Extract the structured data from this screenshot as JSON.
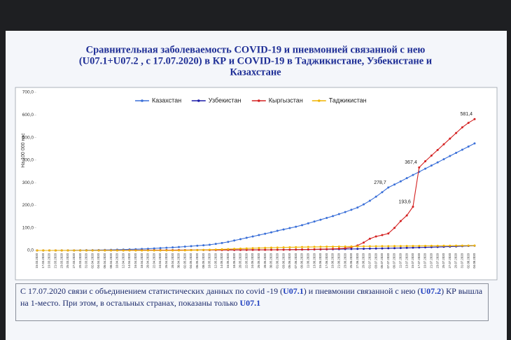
{
  "chart_data": {
    "type": "line",
    "title_lines": [
      "Сравнительная заболеваемость COVID-19 и пневмонией связанной с нею",
      "(U07.1+U07.2 , с 17.07.2020) в КР и COVID-19 в Таджикистане, Узбекистане и",
      "Казахстане"
    ],
    "y_label": "На 100 000 нас",
    "categories": [
      "15.03.2020",
      "17.03.2020",
      "19.03.2020",
      "21.03.2020",
      "23.03.2020",
      "25.03.2020",
      "27.03.2020",
      "29.03.2020",
      "31.03.2020",
      "02.04.2020",
      "04.04.2020",
      "06.04.2020",
      "08.04.2020",
      "10.04.2020",
      "12.04.2020",
      "14.04.2020",
      "16.04.2020",
      "18.04.2020",
      "20.04.2020",
      "22.04.2020",
      "24.04.2020",
      "26.04.2020",
      "28.04.2020",
      "30.04.2020",
      "02.05.2020",
      "04.05.2020",
      "06.05.2020",
      "08.05.2020",
      "10.05.2020",
      "12.05.2020",
      "14.05.2020",
      "16.05.2020",
      "18.05.2020",
      "20.05.2020",
      "22.05.2020",
      "24.05.2020",
      "26.05.2020",
      "28.05.2020",
      "30.05.2020",
      "01.06.2020",
      "03.06.2020",
      "05.06.2020",
      "07.06.2020",
      "09.06.2020",
      "11.06.2020",
      "13.06.2020",
      "15.06.2020",
      "17.06.2020",
      "19.06.2020",
      "21.06.2020",
      "23.06.2020",
      "25.06.2020",
      "27.06.2020",
      "29.06.2020",
      "01.07.2020",
      "03.07.2020",
      "05.07.2020",
      "07.07.2020",
      "09.07.2020",
      "11.07.2020",
      "13.07.2020",
      "15.07.2020",
      "17.07.2020",
      "19.07.2020",
      "21.07.2020",
      "23.07.2020",
      "25.07.2020",
      "27.07.2020",
      "29.07.2020",
      "31.07.2020",
      "02.08.2020",
      "04.08.2020"
    ],
    "series": [
      {
        "name": "Казахстан",
        "color": "#3a6fd8",
        "values": [
          0,
          0,
          0,
          0.1,
          0.2,
          0.3,
          0.5,
          0.7,
          1,
          1.3,
          1.7,
          2.2,
          2.7,
          3.3,
          4,
          4.7,
          5.5,
          6.5,
          7.5,
          9,
          10.5,
          12,
          13.5,
          15,
          17,
          19,
          21,
          23,
          25,
          29,
          33,
          38,
          44,
          50,
          56,
          62,
          68,
          74,
          80,
          87,
          93,
          99,
          105,
          112,
          120,
          128,
          136,
          144,
          152,
          161,
          170,
          180,
          190,
          204,
          220,
          238,
          258,
          278.7,
          292,
          306,
          320,
          334,
          348,
          362,
          376,
          390,
          404,
          418,
          432,
          446,
          460,
          474
        ],
        "value_labels": {
          "57": "278,7"
        }
      },
      {
        "name": "Узбекистан",
        "color": "#1c1ca8",
        "values": [
          0,
          0,
          0,
          0,
          0,
          0,
          0.1,
          0.1,
          0.2,
          0.2,
          0.3,
          0.4,
          0.5,
          0.6,
          0.7,
          0.8,
          0.9,
          1,
          1.1,
          1.2,
          1.3,
          1.4,
          1.5,
          1.6,
          1.7,
          1.8,
          1.9,
          2,
          2.1,
          2.2,
          2.3,
          2.4,
          2.5,
          2.6,
          2.7,
          2.8,
          2.9,
          3,
          3.1,
          3.2,
          3.4,
          3.6,
          3.8,
          4,
          4.2,
          4.5,
          4.8,
          5.1,
          5.4,
          5.8,
          6.2,
          6.6,
          7,
          7.5,
          8,
          8.5,
          9,
          9.6,
          10.2,
          10.8,
          11.5,
          12.2,
          13,
          13.8,
          14.6,
          15.4,
          16.2,
          17,
          18,
          19,
          20,
          21
        ]
      },
      {
        "name": "Кыргызстан",
        "color": "#d42020",
        "values": [
          0,
          0,
          0,
          0,
          0,
          0,
          0,
          0,
          0,
          0,
          0.1,
          0.2,
          0.3,
          0.4,
          0.5,
          0.6,
          0.7,
          0.8,
          0.9,
          1,
          1.1,
          1.2,
          1.3,
          1.4,
          1.5,
          1.6,
          1.7,
          1.8,
          1.9,
          2,
          2.1,
          2.2,
          2.3,
          2.4,
          2.5,
          2.6,
          2.7,
          2.8,
          2.9,
          3,
          3.2,
          3.5,
          3.8,
          4.2,
          4.6,
          5,
          5.5,
          6,
          7,
          8,
          10,
          14,
          22,
          35,
          52,
          62,
          68,
          75,
          100,
          130,
          155,
          193.6,
          367.4,
          395,
          420,
          445,
          470,
          495,
          520,
          545,
          565,
          581.4
        ],
        "value_labels": {
          "61": "193,6",
          "62": "367,4",
          "71": "581,4"
        }
      },
      {
        "name": "Таджикистан",
        "color": "#f0b400",
        "values": [
          0,
          0,
          0,
          0,
          0,
          0,
          0,
          0,
          0,
          0,
          0,
          0,
          0,
          0,
          0,
          0,
          0,
          0,
          0,
          0,
          0,
          0,
          0,
          0,
          0.5,
          1,
          1.5,
          2.2,
          3,
          4,
          5,
          6,
          7,
          8,
          9,
          10,
          10.8,
          11.5,
          12.2,
          12.8,
          13.4,
          14,
          14.5,
          15,
          15.4,
          15.8,
          16.2,
          16.5,
          16.8,
          17.1,
          17.4,
          17.7,
          18,
          18.2,
          18.4,
          18.6,
          18.8,
          19,
          19.2,
          19.4,
          19.6,
          19.8,
          20,
          20.2,
          20.4,
          20.6,
          20.8,
          21,
          21.2,
          21.4,
          21.6,
          21.8
        ]
      }
    ],
    "ylim": [
      0,
      700
    ],
    "yticks": [
      {
        "value": 0,
        "label": "0,0"
      },
      {
        "value": 100,
        "label": "100,0"
      },
      {
        "value": 200,
        "label": "200,0"
      },
      {
        "value": 300,
        "label": "300,0"
      },
      {
        "value": 400,
        "label": "400,0"
      },
      {
        "value": 500,
        "label": "500,0"
      },
      {
        "value": 600,
        "label": "600,0"
      },
      {
        "value": 700,
        "label": "700,0"
      }
    ],
    "legend": "top",
    "note": [
      {
        "text": "С 17.07.2020 связи с объединением статистических данных по covid -19 (",
        "bold": false
      },
      {
        "text": "U07.1",
        "bold": true
      },
      {
        "text": ") и пневмонии связанной с нею (",
        "bold": false
      },
      {
        "text": "U07.2",
        "bold": true
      },
      {
        "text": ") КР вышла на 1-место. При этом, в остальных странах, показаны только ",
        "bold": false
      },
      {
        "text": "U07.1",
        "bold": true
      }
    ]
  }
}
